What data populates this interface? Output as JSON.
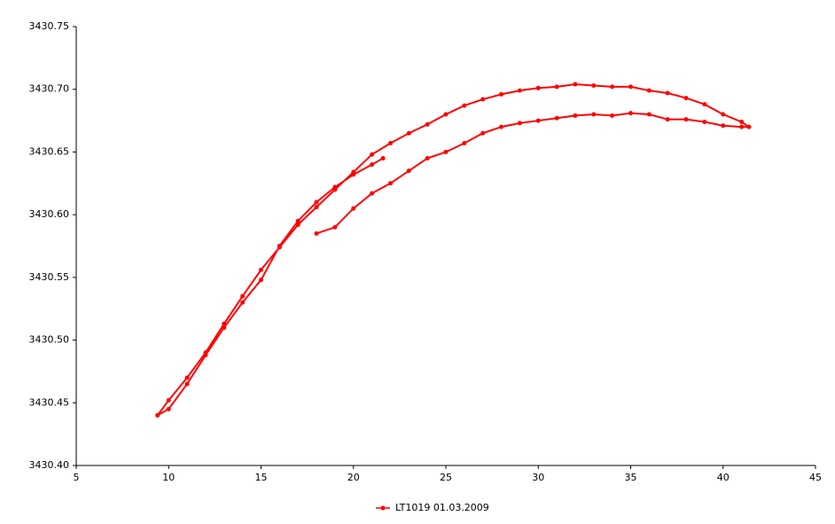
{
  "chart_data": {
    "type": "line",
    "xlim": [
      5,
      45
    ],
    "xticks": [
      5,
      10,
      15,
      20,
      25,
      30,
      35,
      40,
      45
    ],
    "ylim": [
      3430.4,
      3430.75
    ],
    "yticks": [
      {
        "value": 3430.4,
        "label": "3430.40"
      },
      3430.45,
      {
        "value": 3430.5,
        "label": "3430.50"
      },
      3430.55,
      {
        "value": 3430.6,
        "label": "3430.60"
      },
      3430.65,
      {
        "value": 3430.7,
        "label": "3430.70"
      },
      3430.75
    ],
    "grid": false,
    "legend": "bottom",
    "series": [
      {
        "name": "LT1019 01.03.2009",
        "color": "#ff0000",
        "x": [
          18,
          19,
          20,
          21,
          22,
          23,
          24,
          25,
          26,
          27,
          28,
          29,
          30,
          31,
          32,
          33,
          34,
          35,
          36,
          37,
          38,
          39,
          40,
          41,
          41.4,
          41,
          40,
          39,
          38,
          37,
          36,
          35,
          34,
          33,
          32,
          31,
          30,
          29,
          28,
          27,
          26,
          25,
          24,
          23,
          22,
          21,
          20,
          19,
          18,
          17,
          16,
          15,
          14,
          13,
          12,
          11,
          10,
          9.4,
          10,
          11,
          12,
          13,
          14,
          15,
          16,
          17,
          18,
          19,
          20,
          21,
          21.6
        ],
        "values": [
          3430.585,
          3430.59,
          3430.605,
          3430.617,
          3430.625,
          3430.635,
          3430.645,
          3430.65,
          3430.657,
          3430.665,
          3430.67,
          3430.673,
          3430.675,
          3430.677,
          3430.679,
          3430.68,
          3430.679,
          3430.681,
          3430.68,
          3430.676,
          3430.676,
          3430.674,
          3430.671,
          3430.67,
          3430.67,
          3430.674,
          3430.68,
          3430.688,
          3430.693,
          3430.697,
          3430.699,
          3430.702,
          3430.702,
          3430.703,
          3430.704,
          3430.702,
          3430.701,
          3430.699,
          3430.696,
          3430.692,
          3430.687,
          3430.68,
          3430.672,
          3430.665,
          3430.657,
          3430.648,
          3430.634,
          3430.62,
          3430.606,
          3430.592,
          3430.574,
          3430.556,
          3430.535,
          3430.513,
          3430.49,
          3430.47,
          3430.452,
          3430.44,
          3430.445,
          3430.465,
          3430.488,
          3430.51,
          3430.53,
          3430.548,
          3430.575,
          3430.595,
          3430.61,
          3430.622,
          3430.632,
          3430.64,
          3430.645
        ]
      }
    ]
  }
}
